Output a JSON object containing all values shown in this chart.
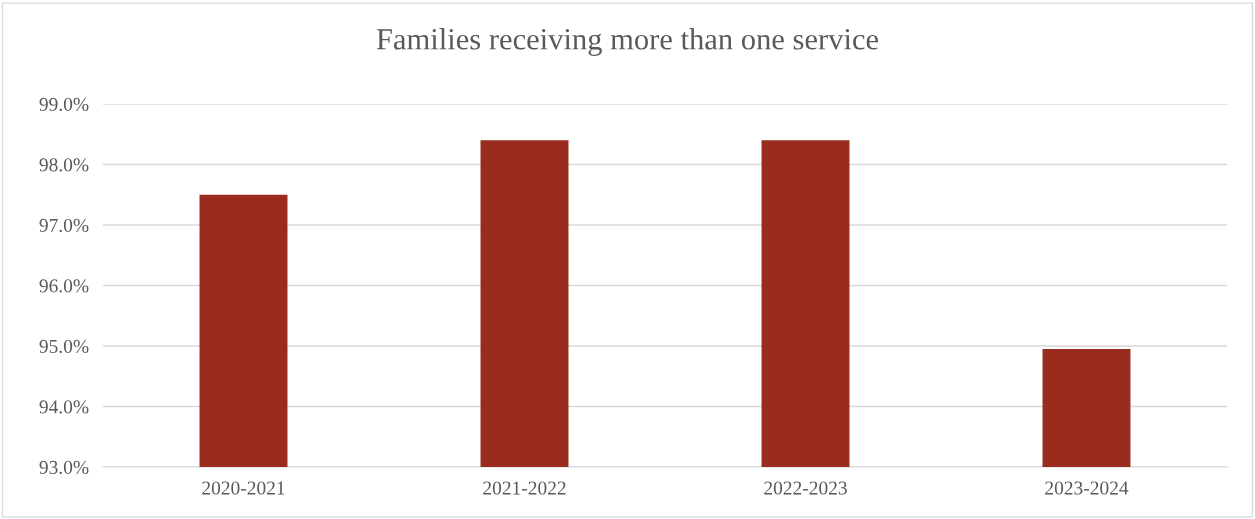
{
  "chart_data": {
    "type": "bar",
    "title": "Families receiving more than one service",
    "categories": [
      "2020-2021",
      "2021-2022",
      "2022-2023",
      "2023-2024"
    ],
    "values": [
      97.5,
      98.4,
      98.4,
      94.95
    ],
    "color": "#992b1f",
    "ylim": [
      93,
      99
    ],
    "yticks": [
      {
        "value": 93,
        "label": "93.0%"
      },
      {
        "value": 94,
        "label": "94.0%"
      },
      {
        "value": 95,
        "label": "95.0%"
      },
      {
        "value": 96,
        "label": "96.0%"
      },
      {
        "value": 97,
        "label": "97.0%"
      },
      {
        "value": 98,
        "label": "98.0%"
      },
      {
        "value": 99,
        "label": "99.0%"
      }
    ],
    "grid": "y",
    "legend": false
  }
}
